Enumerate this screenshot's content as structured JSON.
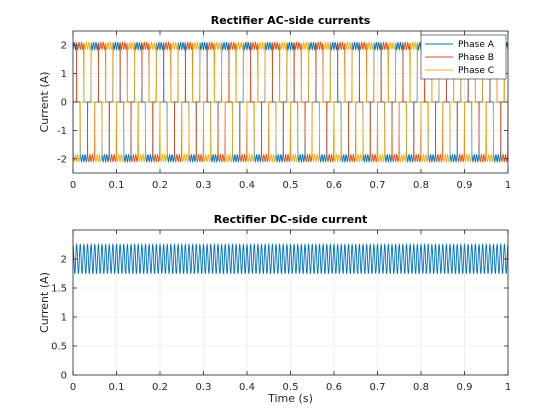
{
  "chart_data": [
    {
      "type": "line",
      "title": "Rectifier AC-side currents",
      "xlabel": "",
      "ylabel": "Current (A)",
      "xlim": [
        0,
        1
      ],
      "ylim": [
        -2.5,
        2.5
      ],
      "xticks": [
        0,
        0.1,
        0.2,
        0.3,
        0.4,
        0.5,
        0.6,
        0.7,
        0.8,
        0.9,
        1
      ],
      "xtick_labels": [
        "0",
        "0.1",
        "0.2",
        "0.3",
        "0.4",
        "0.5",
        "0.6",
        "0.7",
        "0.8",
        "0.9",
        "1"
      ],
      "yticks": [
        -2,
        -1,
        0,
        1,
        2
      ],
      "ytick_labels": [
        "-2",
        "-1",
        "0",
        "1",
        "2"
      ],
      "grid": true,
      "legend_position": "top-right",
      "waveform": {
        "frequency_hz": 20,
        "conduction_deg": 120,
        "level": 2.0,
        "ripple": 0.25
      },
      "series": [
        {
          "name": "Phase A",
          "color": "#0072BD",
          "phase_deg": 0
        },
        {
          "name": "Phase B",
          "color": "#D95319",
          "phase_deg": -120
        },
        {
          "name": "Phase C",
          "color": "#EDB120",
          "phase_deg": 120
        }
      ]
    },
    {
      "type": "line",
      "title": "Rectifier DC-side current",
      "xlabel": "Time (s)",
      "ylabel": "Current (A)",
      "xlim": [
        0,
        1
      ],
      "ylim": [
        0,
        2.5
      ],
      "xticks": [
        0,
        0.1,
        0.2,
        0.3,
        0.4,
        0.5,
        0.6,
        0.7,
        0.8,
        0.9,
        1
      ],
      "xtick_labels": [
        "0",
        "0.1",
        "0.2",
        "0.3",
        "0.4",
        "0.5",
        "0.6",
        "0.7",
        "0.8",
        "0.9",
        "1"
      ],
      "yticks": [
        0,
        0.5,
        1,
        1.5,
        2
      ],
      "ytick_labels": [
        "0",
        "0.5",
        "1",
        "1.5",
        "2"
      ],
      "grid": true,
      "waveform": {
        "ripple_frequency_hz": 120,
        "min": 1.75,
        "max": 2.25
      },
      "series": [
        {
          "color": "#0072BD"
        }
      ]
    }
  ]
}
